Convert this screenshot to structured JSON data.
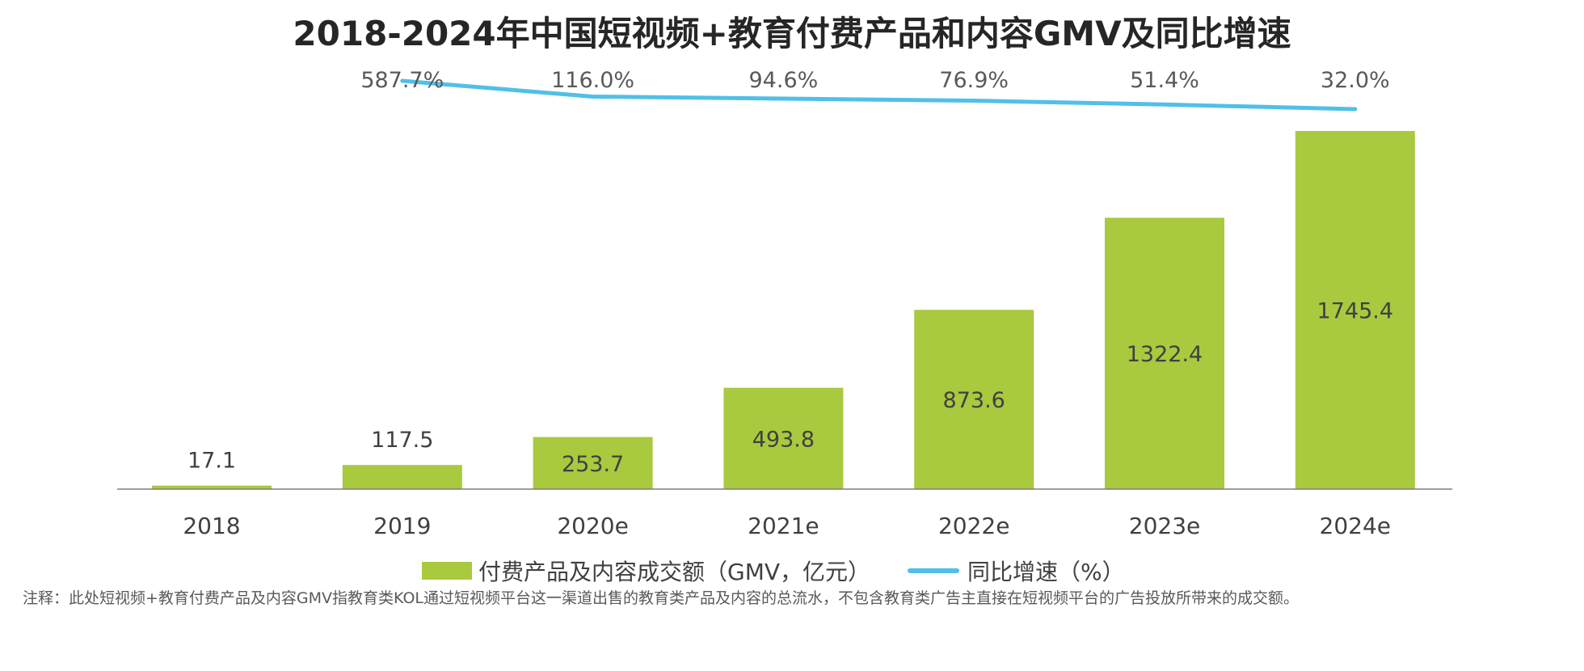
{
  "chart_data": {
    "type": "bar",
    "title": "2018-2024年中国短视频+教育付费产品和内容GMV及同比增速",
    "categories": [
      "2018",
      "2019",
      "2020e",
      "2021e",
      "2022e",
      "2023e",
      "2024e"
    ],
    "series": [
      {
        "name": "付费产品及内容成交额（GMV，亿元）",
        "type": "bar",
        "values": [
          17.1,
          117.5,
          253.7,
          493.8,
          873.6,
          1322.4,
          1745.4
        ],
        "labels": [
          "17.1",
          "117.5",
          "253.7",
          "493.8",
          "873.6",
          "1322.4",
          "1745.4"
        ]
      },
      {
        "name": "同比增速（%）",
        "type": "line",
        "values": [
          null,
          587.7,
          116.0,
          94.6,
          76.9,
          51.4,
          32.0
        ],
        "labels": [
          "",
          "587.7%",
          "116.0%",
          "94.6%",
          "76.9%",
          "51.4%",
          "32.0%"
        ]
      }
    ],
    "ylim": [
      0,
      1800
    ],
    "xlabel": "",
    "ylabel": "",
    "legend_position": "bottom-center",
    "grid": false
  },
  "colors": {
    "bar": "#a9c93f",
    "line": "#52bfe8",
    "axis": "#7f7f7f"
  },
  "legend": {
    "bar_label": "付费产品及内容成交额（GMV，亿元）",
    "line_label": "同比增速（%）"
  },
  "footnote": "注释：此处短视频+教育付费产品及内容GMV指教育类KOL通过短视频平台这一渠道出售的教育类产品及内容的总流水，不包含教育类广告主直接在短视频平台的广告投放所带来的成交额。"
}
